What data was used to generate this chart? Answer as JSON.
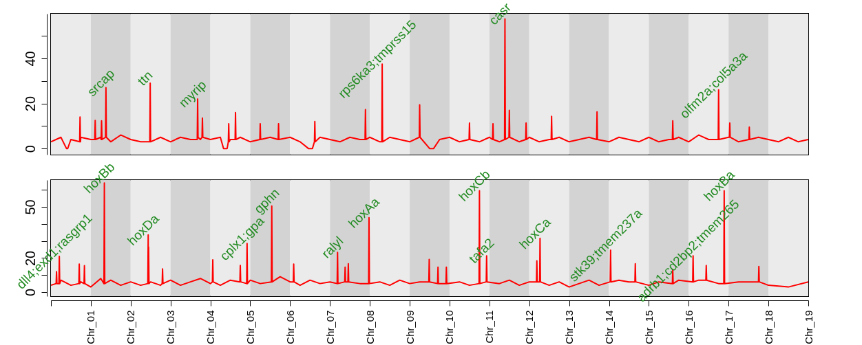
{
  "chart_data": [
    {
      "type": "line",
      "tick_labels": "y",
      "xlim": [
        0,
        19
      ],
      "ylim": [
        -2.7,
        59.8
      ],
      "yticks": [
        0,
        {
          "value": 10,
          "label": null
        },
        20,
        {
          "value": 30,
          "label": null
        },
        40,
        {
          "value": 50,
          "label": null
        }
      ],
      "bands": [
        {
          "axis": "x",
          "from": 0,
          "to": 1,
          "color": "#ebebeb"
        },
        {
          "axis": "x",
          "from": 1,
          "to": 2,
          "color": "#d3d3d3"
        },
        {
          "axis": "x",
          "from": 2,
          "to": 3,
          "color": "#ebebeb"
        },
        {
          "axis": "x",
          "from": 3,
          "to": 4,
          "color": "#d3d3d3"
        },
        {
          "axis": "x",
          "from": 4,
          "to": 5,
          "color": "#ebebeb"
        },
        {
          "axis": "x",
          "from": 5,
          "to": 6,
          "color": "#d3d3d3"
        },
        {
          "axis": "x",
          "from": 6,
          "to": 7,
          "color": "#ebebeb"
        },
        {
          "axis": "x",
          "from": 7,
          "to": 8,
          "color": "#d3d3d3"
        },
        {
          "axis": "x",
          "from": 8,
          "to": 9,
          "color": "#ebebeb"
        },
        {
          "axis": "x",
          "from": 9,
          "to": 10,
          "color": "#d3d3d3"
        },
        {
          "axis": "x",
          "from": 10,
          "to": 11,
          "color": "#ebebeb"
        },
        {
          "axis": "x",
          "from": 11,
          "to": 12,
          "color": "#d3d3d3"
        },
        {
          "axis": "x",
          "from": 12,
          "to": 13,
          "color": "#ebebeb"
        },
        {
          "axis": "x",
          "from": 13,
          "to": 14,
          "color": "#d3d3d3"
        },
        {
          "axis": "x",
          "from": 14,
          "to": 15,
          "color": "#ebebeb"
        },
        {
          "axis": "x",
          "from": 15,
          "to": 16,
          "color": "#d3d3d3"
        },
        {
          "axis": "x",
          "from": 16,
          "to": 17,
          "color": "#ebebeb"
        },
        {
          "axis": "x",
          "from": 17,
          "to": 18,
          "color": "#d3d3d3"
        },
        {
          "axis": "x",
          "from": 18,
          "to": 19,
          "color": "#ebebeb"
        }
      ],
      "annotations": [
        {
          "text": "srcap",
          "x": 1.38,
          "y": 27
        },
        {
          "text": "ttn",
          "x": 2.49,
          "y": 29
        },
        {
          "text": "myrip",
          "x": 3.68,
          "y": 22
        },
        {
          "text": "rps6ka3;tmprss15",
          "x": 8.31,
          "y": 37.5
        },
        {
          "text": "casr",
          "x": 11.39,
          "y": 57.5
        },
        {
          "text": "olfm2a;col5a3a",
          "x": 16.75,
          "y": 26
        }
      ],
      "series": [
        {
          "color": "#ff0000",
          "x": [
            0,
            0.25,
            0.39,
            0.42,
            0.5,
            0.72,
            0.73,
            0.74,
            0.75,
            1,
            1.1,
            1.11,
            1.12,
            1.25,
            1.26,
            1.27,
            1.28,
            1.37,
            1.38,
            1.39,
            1.5,
            1.75,
            2,
            2.25,
            2.48,
            2.49,
            2.5,
            2.75,
            3,
            3.25,
            3.5,
            3.67,
            3.68,
            3.69,
            3.75,
            3.79,
            3.8,
            3.81,
            4,
            4.25,
            4.33,
            4.42,
            4.45,
            4.46,
            4.47,
            4.5,
            4.62,
            4.63,
            4.64,
            4.75,
            5,
            5.24,
            5.25,
            5.26,
            5.5,
            5.7,
            5.71,
            5.72,
            6,
            6.25,
            6.46,
            6.56,
            6.61,
            6.62,
            6.63,
            6.75,
            7,
            7.25,
            7.5,
            7.75,
            7.88,
            7.89,
            7.9,
            8,
            8.25,
            8.3,
            8.31,
            8.32,
            8.5,
            8.75,
            9,
            9.24,
            9.25,
            9.26,
            9.5,
            9.6,
            9.75,
            10,
            10.25,
            10.49,
            10.5,
            10.51,
            10.75,
            11,
            11.08,
            11.09,
            11.1,
            11.25,
            11.38,
            11.39,
            11.4,
            11.49,
            11.5,
            11.51,
            11.75,
            11.91,
            11.92,
            11.93,
            12,
            12.25,
            12.5,
            12.55,
            12.56,
            12.57,
            12.75,
            13,
            13.25,
            13.5,
            13.69,
            13.7,
            13.71,
            14,
            14.25,
            14.5,
            14.75,
            15,
            15.25,
            15.5,
            15.59,
            15.6,
            15.61,
            15.75,
            16,
            16.25,
            16.5,
            16.74,
            16.75,
            16.76,
            17,
            17.02,
            17.03,
            17.04,
            17.25,
            17.51,
            17.52,
            17.53,
            17.75,
            18,
            18.25,
            18.5,
            18.75,
            19
          ],
          "values": [
            3,
            5,
            0,
            0,
            4,
            3,
            14,
            3,
            5,
            4,
            4,
            12.5,
            4,
            5,
            4,
            12.3,
            4,
            5,
            27,
            5,
            3,
            6,
            4,
            3,
            3,
            29,
            3,
            5,
            3,
            5,
            4,
            4,
            22,
            5,
            4,
            5,
            13.5,
            5,
            4,
            5,
            0,
            0,
            3,
            11,
            3,
            4,
            4,
            16,
            4,
            5,
            3,
            4,
            11,
            4,
            5,
            4,
            11,
            4,
            5,
            3,
            0,
            0,
            3,
            12,
            3,
            5,
            4,
            3,
            5,
            4,
            4,
            17.3,
            4,
            5,
            3,
            3,
            37.5,
            3,
            5,
            4,
            3,
            5,
            19.4,
            5,
            0,
            0,
            4,
            5,
            3,
            4,
            11.3,
            4,
            3,
            5,
            4,
            11,
            4,
            3,
            4,
            57.5,
            4,
            5,
            17,
            5,
            3,
            4,
            11.3,
            4,
            5,
            3,
            4,
            4,
            14.3,
            4,
            5,
            3,
            4,
            5,
            4,
            16.3,
            4,
            3,
            5,
            4,
            3,
            5,
            3,
            4,
            4,
            12.3,
            4,
            5,
            3,
            6,
            4,
            4,
            26,
            4,
            5,
            5,
            11.3,
            5,
            3,
            4,
            9.5,
            4,
            5,
            4,
            3,
            5,
            3,
            4
          ]
        }
      ]
    },
    {
      "type": "line",
      "xlim": [
        0,
        19
      ],
      "xticks": [
        {
          "value": 0,
          "label": null
        },
        {
          "value": 1,
          "label": "Chr_01"
        },
        {
          "value": 2,
          "label": "Chr_02"
        },
        {
          "value": 3,
          "label": "Chr_03"
        },
        {
          "value": 4,
          "label": "Chr_04"
        },
        {
          "value": 5,
          "label": "Chr_05"
        },
        {
          "value": 6,
          "label": "Chr_06"
        },
        {
          "value": 7,
          "label": "Chr_07"
        },
        {
          "value": 8,
          "label": "Chr_08"
        },
        {
          "value": 9,
          "label": "Chr_09"
        },
        {
          "value": 10,
          "label": "Chr_10"
        },
        {
          "value": 11,
          "label": "Chr_11"
        },
        {
          "value": 12,
          "label": "Chr_12"
        },
        {
          "value": 13,
          "label": "Chr_13"
        },
        {
          "value": 14,
          "label": "Chr_14"
        },
        {
          "value": 15,
          "label": "Chr_15"
        },
        {
          "value": 16,
          "label": "Chr_16"
        },
        {
          "value": 17,
          "label": "Chr_17"
        },
        {
          "value": 18,
          "label": "Chr_18"
        },
        {
          "value": 19,
          "label": "Chr_19"
        }
      ],
      "ylim": [
        -2.4,
        65.7
      ],
      "yticks": [
        0,
        {
          "value": 10,
          "label": null
        },
        20,
        {
          "value": 30,
          "label": null
        },
        {
          "value": 40,
          "label": null
        },
        50,
        {
          "value": 60,
          "label": null
        }
      ],
      "bands": [
        {
          "axis": "x",
          "from": 0,
          "to": 1,
          "color": "#ebebeb"
        },
        {
          "axis": "x",
          "from": 1,
          "to": 2,
          "color": "#d3d3d3"
        },
        {
          "axis": "x",
          "from": 2,
          "to": 3,
          "color": "#ebebeb"
        },
        {
          "axis": "x",
          "from": 3,
          "to": 4,
          "color": "#d3d3d3"
        },
        {
          "axis": "x",
          "from": 4,
          "to": 5,
          "color": "#ebebeb"
        },
        {
          "axis": "x",
          "from": 5,
          "to": 6,
          "color": "#d3d3d3"
        },
        {
          "axis": "x",
          "from": 6,
          "to": 7,
          "color": "#ebebeb"
        },
        {
          "axis": "x",
          "from": 7,
          "to": 8,
          "color": "#d3d3d3"
        },
        {
          "axis": "x",
          "from": 8,
          "to": 9,
          "color": "#ebebeb"
        },
        {
          "axis": "x",
          "from": 9,
          "to": 10,
          "color": "#d3d3d3"
        },
        {
          "axis": "x",
          "from": 10,
          "to": 11,
          "color": "#ebebeb"
        },
        {
          "axis": "x",
          "from": 11,
          "to": 12,
          "color": "#d3d3d3"
        },
        {
          "axis": "x",
          "from": 12,
          "to": 13,
          "color": "#ebebeb"
        },
        {
          "axis": "x",
          "from": 13,
          "to": 14,
          "color": "#d3d3d3"
        },
        {
          "axis": "x",
          "from": 14,
          "to": 15,
          "color": "#ebebeb"
        },
        {
          "axis": "x",
          "from": 15,
          "to": 16,
          "color": "#d3d3d3"
        },
        {
          "axis": "x",
          "from": 16,
          "to": 17,
          "color": "#ebebeb"
        },
        {
          "axis": "x",
          "from": 17,
          "to": 18,
          "color": "#d3d3d3"
        },
        {
          "axis": "x",
          "from": 18,
          "to": 19,
          "color": "#ebebeb"
        }
      ],
      "annotations": [
        {
          "text": "dll4;exd1;rasgrp1",
          "x": 0.21,
          "y": 21
        },
        {
          "text": "hoxBb",
          "x": 1.34,
          "y": 64
        },
        {
          "text": "hoxDa",
          "x": 2.44,
          "y": 33.6
        },
        {
          "text": "cplx1;gpa",
          "x": 4.92,
          "y": 28.5
        },
        {
          "text": "gphn",
          "x": 5.54,
          "y": 50.5
        },
        {
          "text": "ralyl",
          "x": 7.19,
          "y": 23.3
        },
        {
          "text": "hoxAa",
          "x": 7.98,
          "y": 43.6
        },
        {
          "text": "hoxCb",
          "x": 10.75,
          "y": 59.5
        },
        {
          "text": "tafa2",
          "x": 10.93,
          "y": 21.3
        },
        {
          "text": "hoxCa",
          "x": 12.27,
          "y": 31.5
        },
        {
          "text": "stk39;tmem237a",
          "x": 14.04,
          "y": 24.6
        },
        {
          "text": "hoxBa",
          "x": 16.89,
          "y": 59.5
        },
        {
          "text": "adrb1;cd2bp2;tmem265",
          "x": 16.11,
          "y": 21.3
        }
      ],
      "series": [
        {
          "color": "#ff0000",
          "x": [
            0,
            0.13,
            0.14,
            0.15,
            0.2,
            0.21,
            0.22,
            0.25,
            0.5,
            0.7,
            0.71,
            0.72,
            0.75,
            0.83,
            0.84,
            0.85,
            1,
            1.25,
            1.33,
            1.34,
            1.35,
            1.5,
            1.75,
            2,
            2.25,
            2.43,
            2.44,
            2.445,
            2.45,
            2.46,
            2.5,
            2.75,
            2.79,
            2.8,
            2.81,
            3,
            3.25,
            3.5,
            3.75,
            4,
            4.05,
            4.06,
            4.07,
            4.25,
            4.5,
            4.74,
            4.75,
            4.76,
            4.91,
            4.92,
            4.93,
            5,
            5.25,
            5.53,
            5.54,
            5.55,
            5.75,
            6,
            6.08,
            6.09,
            6.1,
            6.25,
            6.5,
            6.75,
            7,
            7.18,
            7.19,
            7.2,
            7.37,
            7.38,
            7.39,
            7.45,
            7.46,
            7.47,
            7.75,
            7.97,
            7.98,
            7.99,
            8.25,
            8.5,
            8.75,
            9,
            9.25,
            9.48,
            9.49,
            9.5,
            9.7,
            9.71,
            9.72,
            9.91,
            9.92,
            9.93,
            10.25,
            10.5,
            10.74,
            10.75,
            10.76,
            10.92,
            10.93,
            10.94,
            11.25,
            11.5,
            11.75,
            12,
            12.18,
            12.19,
            12.2,
            12.26,
            12.27,
            12.28,
            12.5,
            12.75,
            13,
            13.25,
            13.5,
            13.75,
            14.03,
            14.04,
            14.05,
            14.25,
            14.5,
            14.65,
            14.66,
            14.67,
            15,
            15.25,
            15.59,
            15.6,
            15.61,
            15.75,
            16.1,
            16.11,
            16.12,
            16.25,
            16.43,
            16.44,
            16.45,
            16.75,
            16.88,
            16.89,
            16.9,
            17.25,
            17.5,
            17.75,
            17.76,
            17.77,
            18,
            18.5,
            19
          ],
          "values": [
            4,
            5,
            12,
            5,
            5,
            21,
            5,
            7,
            4,
            5,
            16.4,
            5,
            6,
            5,
            15.5,
            5,
            3,
            8,
            5,
            64,
            5,
            7,
            4,
            6,
            4,
            5,
            33.6,
            9,
            26.4,
            5,
            6,
            4,
            5,
            13.6,
            5,
            7,
            4,
            6,
            8,
            5,
            6,
            19,
            6,
            4,
            7,
            6,
            15.6,
            6,
            5,
            28.5,
            5,
            7,
            5,
            6,
            50.5,
            6,
            9,
            6,
            6,
            16.4,
            6,
            4,
            7,
            5,
            6,
            5,
            23.3,
            5,
            6,
            14.6,
            6,
            6,
            16.6,
            6,
            5,
            5,
            43.6,
            5,
            6,
            4,
            7,
            5,
            6,
            6,
            19.2,
            6,
            5,
            14.6,
            5,
            5,
            14.6,
            5,
            6,
            4,
            5,
            59.5,
            5,
            6,
            21.3,
            6,
            5,
            7,
            4,
            6,
            6,
            18.4,
            6,
            6,
            31.5,
            6,
            4,
            6,
            3,
            5,
            7,
            4,
            6,
            24.6,
            6,
            7,
            6,
            6,
            16.6,
            6,
            4,
            6,
            5,
            13.3,
            5,
            7,
            6,
            21.3,
            6,
            7,
            7,
            15.6,
            7,
            5,
            5,
            59.5,
            5,
            6,
            6,
            6,
            15,
            6,
            4,
            3,
            6
          ]
        }
      ]
    }
  ]
}
